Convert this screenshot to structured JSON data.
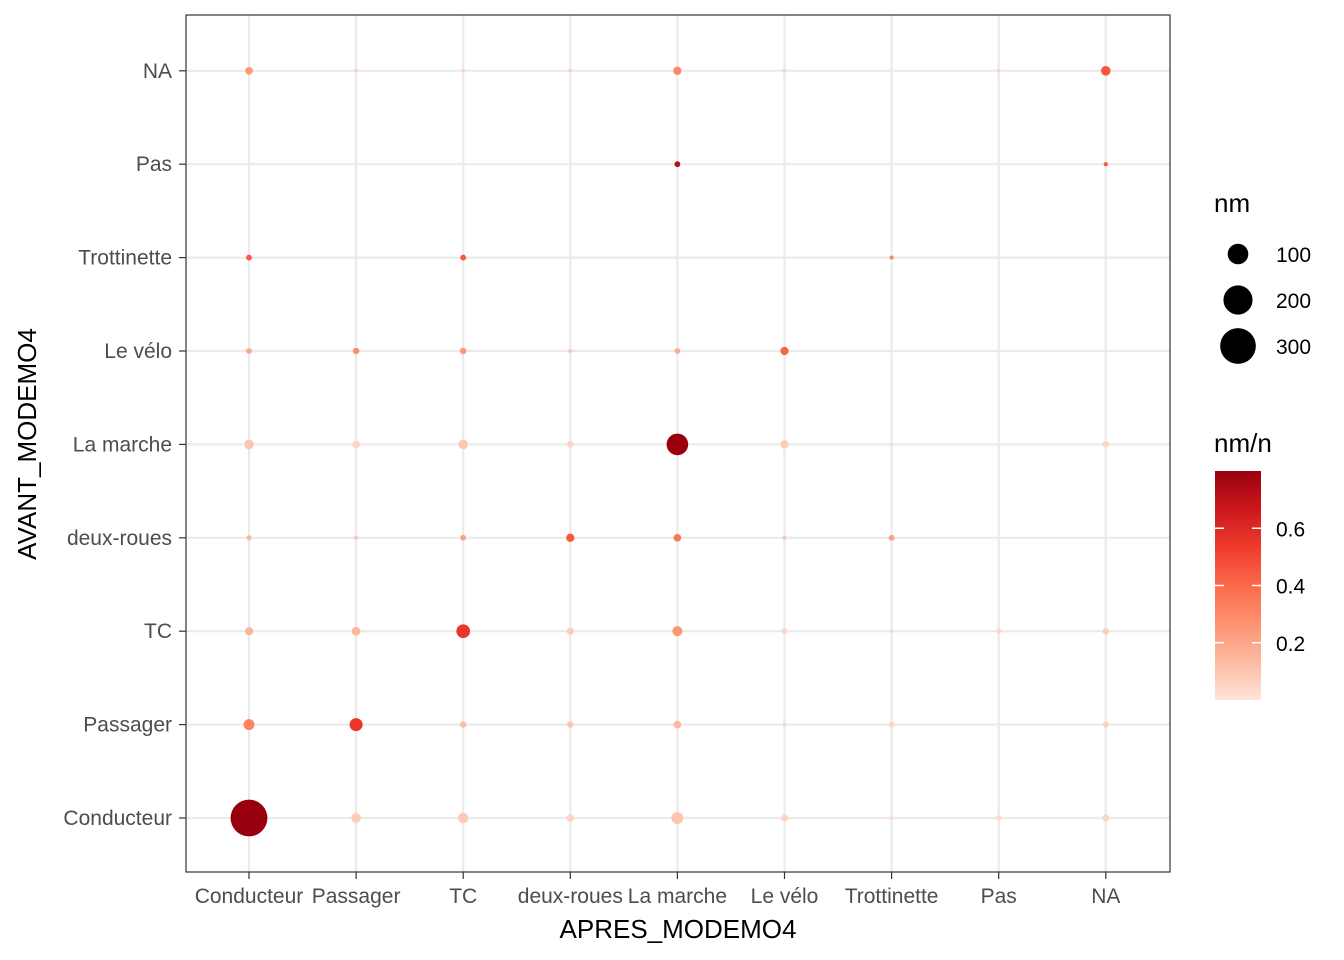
{
  "chart_data": {
    "type": "scatter",
    "xlabel": "APRES_MODEMO4",
    "ylabel": "AVANT_MODEMO4",
    "x_categories": [
      "Conducteur",
      "Passager",
      "TC",
      "deux-roues",
      "La marche",
      "Le vélo",
      "Trottinette",
      "Pas",
      "NA"
    ],
    "y_categories": [
      "Conducteur",
      "Passager",
      "TC",
      "deux-roues",
      "La marche",
      "Le vélo",
      "Trottinette",
      "Pas",
      "NA"
    ],
    "grid": true,
    "legend_position": "right",
    "size_legend": {
      "title": "nm",
      "values": [
        100,
        200,
        300
      ],
      "labels": [
        "100",
        "200",
        "300"
      ]
    },
    "color_legend": {
      "title": "nm/n",
      "min": 0.0,
      "max": 0.8,
      "ticks": [
        0.2,
        0.4,
        0.6
      ],
      "tick_labels": [
        "0.2",
        "0.4",
        "0.6"
      ],
      "colors": [
        "#fee5d9",
        "#fcbba1",
        "#fc9272",
        "#fb6a4a",
        "#ef3b2c",
        "#cb181d",
        "#99000d"
      ]
    },
    "points": [
      {
        "x": "Conducteur",
        "y": "NA",
        "nm": 14,
        "ratio": 0.25
      },
      {
        "x": "Passager",
        "y": "NA",
        "nm": 4,
        "ratio": 0.06
      },
      {
        "x": "TC",
        "y": "NA",
        "nm": 4,
        "ratio": 0.06
      },
      {
        "x": "deux-roues",
        "y": "NA",
        "nm": 4,
        "ratio": 0.06
      },
      {
        "x": "La marche",
        "y": "NA",
        "nm": 16,
        "ratio": 0.3
      },
      {
        "x": "Le vélo",
        "y": "NA",
        "nm": 4,
        "ratio": 0.06
      },
      {
        "x": "Pas",
        "y": "NA",
        "nm": 4,
        "ratio": 0.06
      },
      {
        "x": "NA",
        "y": "NA",
        "nm": 22,
        "ratio": 0.45
      },
      {
        "x": "La marche",
        "y": "Pas",
        "nm": 8,
        "ratio": 0.72
      },
      {
        "x": "NA",
        "y": "Pas",
        "nm": 4,
        "ratio": 0.45
      },
      {
        "x": "Conducteur",
        "y": "Trottinette",
        "nm": 8,
        "ratio": 0.45
      },
      {
        "x": "TC",
        "y": "Trottinette",
        "nm": 8,
        "ratio": 0.45
      },
      {
        "x": "Trottinette",
        "y": "Trottinette",
        "nm": 4,
        "ratio": 0.3
      },
      {
        "x": "Conducteur",
        "y": "Le vélo",
        "nm": 8,
        "ratio": 0.2
      },
      {
        "x": "Passager",
        "y": "Le vélo",
        "nm": 10,
        "ratio": 0.28
      },
      {
        "x": "TC",
        "y": "Le vélo",
        "nm": 10,
        "ratio": 0.25
      },
      {
        "x": "deux-roues",
        "y": "Le vélo",
        "nm": 4,
        "ratio": 0.1
      },
      {
        "x": "La marche",
        "y": "Le vélo",
        "nm": 8,
        "ratio": 0.18
      },
      {
        "x": "Le vélo",
        "y": "Le vélo",
        "nm": 16,
        "ratio": 0.42
      },
      {
        "x": "Conducteur",
        "y": "La marche",
        "nm": 22,
        "ratio": 0.1
      },
      {
        "x": "Passager",
        "y": "La marche",
        "nm": 14,
        "ratio": 0.05
      },
      {
        "x": "TC",
        "y": "La marche",
        "nm": 22,
        "ratio": 0.1
      },
      {
        "x": "deux-roues",
        "y": "La marche",
        "nm": 10,
        "ratio": 0.05
      },
      {
        "x": "La marche",
        "y": "La marche",
        "nm": 110,
        "ratio": 0.8
      },
      {
        "x": "Le vélo",
        "y": "La marche",
        "nm": 16,
        "ratio": 0.08
      },
      {
        "x": "Trottinette",
        "y": "La marche",
        "nm": 4,
        "ratio": 0.03
      },
      {
        "x": "NA",
        "y": "La marche",
        "nm": 10,
        "ratio": 0.05
      },
      {
        "x": "Conducteur",
        "y": "deux-roues",
        "nm": 6,
        "ratio": 0.15
      },
      {
        "x": "Passager",
        "y": "deux-roues",
        "nm": 4,
        "ratio": 0.1
      },
      {
        "x": "TC",
        "y": "deux-roues",
        "nm": 8,
        "ratio": 0.22
      },
      {
        "x": "deux-roues",
        "y": "deux-roues",
        "nm": 16,
        "ratio": 0.45
      },
      {
        "x": "La marche",
        "y": "deux-roues",
        "nm": 14,
        "ratio": 0.35
      },
      {
        "x": "Le vélo",
        "y": "deux-roues",
        "nm": 4,
        "ratio": 0.1
      },
      {
        "x": "Trottinette",
        "y": "deux-roues",
        "nm": 8,
        "ratio": 0.22
      },
      {
        "x": "Conducteur",
        "y": "TC",
        "nm": 16,
        "ratio": 0.15
      },
      {
        "x": "Passager",
        "y": "TC",
        "nm": 18,
        "ratio": 0.15
      },
      {
        "x": "TC",
        "y": "TC",
        "nm": 44,
        "ratio": 0.55
      },
      {
        "x": "deux-roues",
        "y": "TC",
        "nm": 12,
        "ratio": 0.08
      },
      {
        "x": "La marche",
        "y": "TC",
        "nm": 24,
        "ratio": 0.25
      },
      {
        "x": "Le vélo",
        "y": "TC",
        "nm": 8,
        "ratio": 0.05
      },
      {
        "x": "Trottinette",
        "y": "TC",
        "nm": 4,
        "ratio": 0.04
      },
      {
        "x": "Pas",
        "y": "TC",
        "nm": 6,
        "ratio": 0.05
      },
      {
        "x": "NA",
        "y": "TC",
        "nm": 10,
        "ratio": 0.08
      },
      {
        "x": "Conducteur",
        "y": "Passager",
        "nm": 28,
        "ratio": 0.32
      },
      {
        "x": "Passager",
        "y": "Passager",
        "nm": 40,
        "ratio": 0.55
      },
      {
        "x": "TC",
        "y": "Passager",
        "nm": 10,
        "ratio": 0.12
      },
      {
        "x": "deux-roues",
        "y": "Passager",
        "nm": 10,
        "ratio": 0.1
      },
      {
        "x": "La marche",
        "y": "Passager",
        "nm": 14,
        "ratio": 0.14
      },
      {
        "x": "Le vélo",
        "y": "Passager",
        "nm": 4,
        "ratio": 0.05
      },
      {
        "x": "Trottinette",
        "y": "Passager",
        "nm": 8,
        "ratio": 0.06
      },
      {
        "x": "NA",
        "y": "Passager",
        "nm": 8,
        "ratio": 0.07
      },
      {
        "x": "Conducteur",
        "y": "Conducteur",
        "nm": 320,
        "ratio": 0.8
      },
      {
        "x": "Passager",
        "y": "Conducteur",
        "nm": 22,
        "ratio": 0.08
      },
      {
        "x": "TC",
        "y": "Conducteur",
        "nm": 26,
        "ratio": 0.08
      },
      {
        "x": "deux-roues",
        "y": "Conducteur",
        "nm": 14,
        "ratio": 0.05
      },
      {
        "x": "La marche",
        "y": "Conducteur",
        "nm": 34,
        "ratio": 0.1
      },
      {
        "x": "Le vélo",
        "y": "Conducteur",
        "nm": 12,
        "ratio": 0.05
      },
      {
        "x": "Trottinette",
        "y": "Conducteur",
        "nm": 4,
        "ratio": 0.03
      },
      {
        "x": "Pas",
        "y": "Conducteur",
        "nm": 8,
        "ratio": 0.03
      },
      {
        "x": "NA",
        "y": "Conducteur",
        "nm": 12,
        "ratio": 0.05
      }
    ]
  }
}
